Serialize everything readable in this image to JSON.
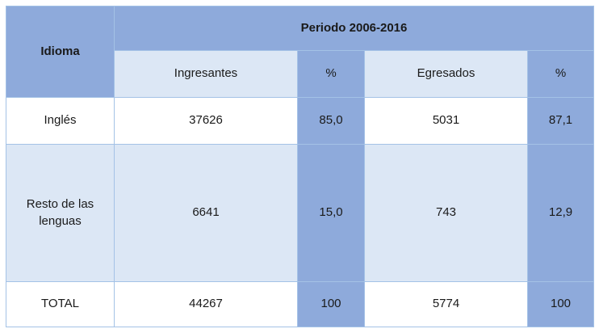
{
  "chart_data": {
    "type": "table",
    "title": "Periodo 2006-2016",
    "row_header": "Idioma",
    "columns": [
      "Ingresantes",
      "%",
      "Egresados",
      "%"
    ],
    "rows": [
      [
        "Inglés",
        "37626",
        "85,0",
        "5031",
        "87,1"
      ],
      [
        "Resto de las lenguas",
        "6641",
        "15,0",
        "743",
        "12,9"
      ],
      [
        "TOTAL",
        "44267",
        "100",
        "5774",
        "100"
      ]
    ],
    "layout_hints": {
      "merged_cells": [
        "row_header spans 2 header rows",
        "title spans 4 data columns"
      ],
      "percent_columns_shaded": true
    }
  },
  "colors": {
    "header_blue": "#8EAADB",
    "light_blue": "#DCE7F5",
    "cell_white": "#FFFFFF",
    "border": "#A4C2E6",
    "text": "#1A1A1A"
  }
}
